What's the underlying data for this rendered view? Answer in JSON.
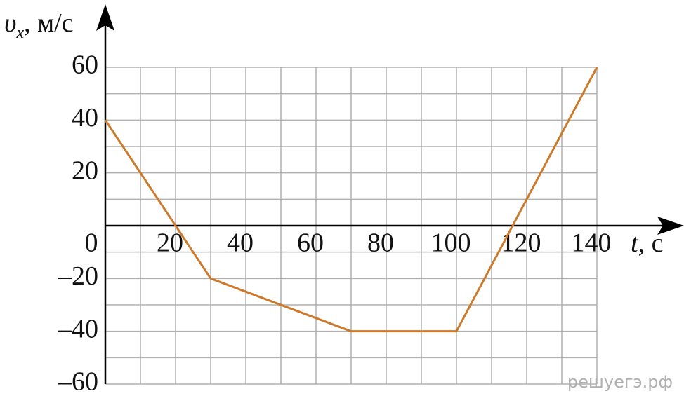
{
  "chart_data": {
    "type": "line",
    "y_label": {
      "symbol": "υ",
      "subscript": "x",
      "unit": ", м/с"
    },
    "x_label": {
      "symbol": "t",
      "unit": ", с"
    },
    "x": [
      0,
      30,
      70,
      100,
      140
    ],
    "series": [
      {
        "color": "#cc7a2a",
        "values": [
          40,
          -20,
          -40,
          -40,
          60
        ]
      }
    ],
    "xlim": [
      0,
      140
    ],
    "ylim": [
      -60,
      60
    ],
    "xticks": [
      0,
      20,
      40,
      60,
      80,
      100,
      120,
      140
    ],
    "yticks": [
      {
        "value": -60,
        "label": "–60"
      },
      {
        "value": -40,
        "label": "–40"
      },
      {
        "value": -20,
        "label": "–20"
      },
      20,
      40,
      60
    ],
    "xminorticks": [
      10,
      30,
      50,
      70,
      90,
      110,
      130
    ],
    "yminorticks": [
      -50,
      -30,
      -10,
      10,
      30,
      50
    ],
    "grid": true,
    "watermark": "решуегэ.рф"
  }
}
